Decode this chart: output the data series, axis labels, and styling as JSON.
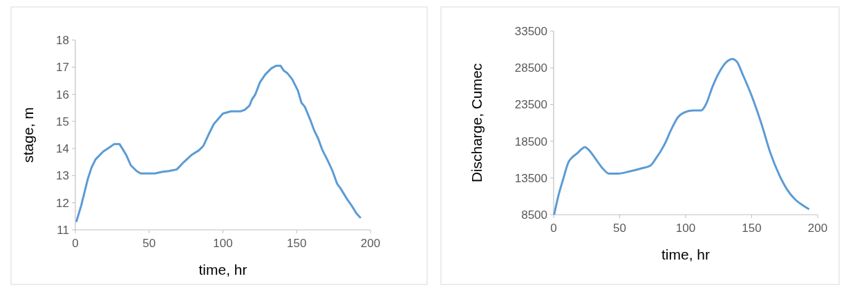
{
  "chart_data": [
    {
      "type": "line",
      "xlabel": "time, hr",
      "ylabel": "stage, m",
      "xlim": [
        0,
        200
      ],
      "xticks": [
        0,
        50,
        100,
        150,
        200
      ],
      "ylim": [
        11,
        18
      ],
      "yticks": [
        11,
        12,
        13,
        14,
        15,
        16,
        17,
        18
      ],
      "grid": false,
      "series": [
        {
          "color": "#5b9bd5",
          "x": [
            0.8,
            4,
            8.4,
            11,
            13.7,
            18.9,
            22.8,
            26.2,
            30,
            34.5,
            37.6,
            41.5,
            44.3,
            54,
            58.7,
            63.4,
            68.8,
            73.5,
            78.7,
            83.7,
            86.8,
            90,
            93.8,
            100,
            105.5,
            111.8,
            114.9,
            118,
            119.6,
            122,
            125,
            128.7,
            132.9,
            136,
            139.1,
            141.1,
            143.8,
            146.9,
            150.8,
            153.2,
            155.5,
            159.4,
            161.7,
            164.6,
            167.2,
            171.1,
            174.3,
            177.4,
            179.7,
            184.4,
            186.7,
            190.6,
            193
          ],
          "values": [
            11.32,
            11.9,
            12.87,
            13.3,
            13.6,
            13.89,
            14.03,
            14.16,
            14.16,
            13.76,
            13.38,
            13.17,
            13.08,
            13.08,
            13.14,
            13.17,
            13.23,
            13.5,
            13.76,
            13.93,
            14.1,
            14.48,
            14.9,
            15.29,
            15.37,
            15.37,
            15.43,
            15.58,
            15.8,
            16.0,
            16.43,
            16.73,
            16.96,
            17.05,
            17.05,
            16.88,
            16.77,
            16.56,
            16.14,
            15.69,
            15.54,
            15.03,
            14.69,
            14.36,
            13.97,
            13.55,
            13.17,
            12.7,
            12.53,
            12.11,
            11.94,
            11.6,
            11.46
          ]
        }
      ]
    },
    {
      "type": "line",
      "xlabel": "time, hr",
      "ylabel": "Discharge, Cumec",
      "xlim": [
        0,
        200
      ],
      "xticks": [
        0,
        50,
        100,
        150,
        200
      ],
      "ylim": [
        8500,
        33500
      ],
      "yticks": [
        8500,
        13500,
        18500,
        23500,
        28500,
        33500
      ],
      "grid": false,
      "series": [
        {
          "color": "#5b9bd5",
          "x": [
            0.5,
            3.5,
            7,
            11.4,
            14,
            17.5,
            21,
            23.6,
            26.2,
            31.4,
            36.7,
            41.9,
            48.9,
            57.6,
            66.4,
            73.4,
            76.9,
            83.8,
            89.1,
            94.3,
            98.7,
            105.7,
            111.8,
            115.3,
            120.5,
            125.8,
            131,
            135.4,
            138.9,
            143.2,
            150.2,
            157.2,
            164.2,
            171.2,
            177.3,
            183.4,
            188.6,
            193
          ],
          "values": [
            8600,
            11000,
            13200,
            15700,
            16300,
            16800,
            17400,
            17700,
            17400,
            16200,
            14900,
            14100,
            14100,
            14400,
            14800,
            15200,
            16000,
            18000,
            20100,
            21800,
            22400,
            22700,
            22700,
            23500,
            26000,
            28000,
            29300,
            29700,
            29300,
            27600,
            24600,
            21000,
            16900,
            13800,
            11800,
            10500,
            9800,
            9300
          ]
        }
      ]
    }
  ]
}
